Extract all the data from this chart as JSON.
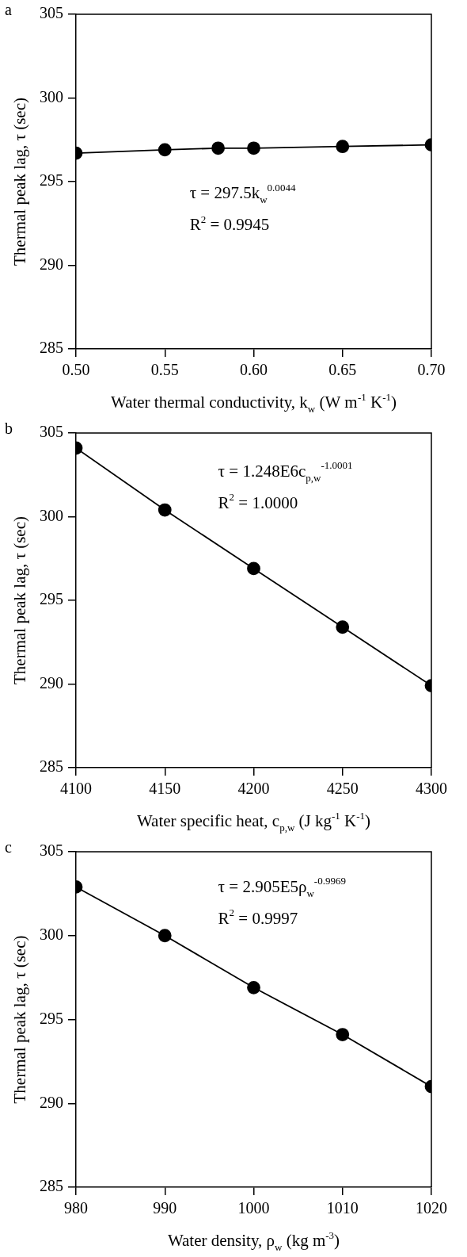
{
  "chart_data": [
    {
      "type": "line",
      "title": "a",
      "xlabel": "Water thermal conductivity, k$_{w}$ (W m$^{-1}$ K$^{-1}$)",
      "ylabel": "Thermal peak lag, τ (sec)",
      "x": [
        0.5,
        0.55,
        0.58,
        0.6,
        0.65,
        0.7
      ],
      "series": [
        {
          "color": "#000000",
          "values": [
            296.7,
            296.9,
            297.0,
            297.0,
            297.1,
            297.2
          ]
        }
      ],
      "xlim": [
        0.5,
        0.7
      ],
      "xticks": [
        {
          "value": 0.5,
          "label": "0.50"
        },
        0.55,
        {
          "value": 0.6,
          "label": "0.60"
        },
        0.65,
        {
          "value": 0.7,
          "label": "0.70"
        }
      ],
      "ylim": [
        285,
        305
      ],
      "yticks": [
        285,
        290,
        295,
        300,
        305
      ],
      "annotations": [
        "τ = 297.5k$_{w}$$^{0.0044}$",
        "R$^{2}$ = 0.9945"
      ],
      "marker": "circle",
      "line_style": "solid",
      "grid": false,
      "legend": false
    },
    {
      "type": "line",
      "title": "b",
      "xlabel": "Water specific heat, c$_{p,w}$ (J kg$^{-1}$ K$^{-1}$)",
      "ylabel": "Thermal peak lag, τ (sec)",
      "x": [
        4100,
        4150,
        4200,
        4250,
        4300
      ],
      "series": [
        {
          "color": "#000000",
          "values": [
            304.1,
            300.4,
            296.9,
            293.4,
            289.9
          ]
        }
      ],
      "xlim": [
        4100,
        4300
      ],
      "xticks": [
        4100,
        4150,
        4200,
        4250,
        4300
      ],
      "ylim": [
        285,
        305
      ],
      "yticks": [
        285,
        290,
        295,
        300,
        305
      ],
      "annotations": [
        "τ = 1.248E6c$_{p,w}$$^{-1.0001}$",
        "R$^{2}$ = 1.0000"
      ],
      "marker": "circle",
      "line_style": "solid",
      "grid": false,
      "legend": false
    },
    {
      "type": "line",
      "title": "c",
      "xlabel": "Water density, ρ$_{w}$ (kg m$^{-3}$)",
      "ylabel": "Thermal peak lag, τ (sec)",
      "x": [
        980,
        990,
        1000,
        1010,
        1020
      ],
      "series": [
        {
          "color": "#000000",
          "values": [
            302.9,
            300.0,
            296.9,
            294.1,
            291.0
          ]
        }
      ],
      "xlim": [
        980,
        1020
      ],
      "xticks": [
        980,
        990,
        1000,
        1010,
        1020
      ],
      "ylim": [
        285,
        305
      ],
      "yticks": [
        285,
        290,
        295,
        300,
        305
      ],
      "annotations": [
        "τ = 2.905E5ρ$_{w}$$^{-0.9969}$",
        "R$^{2}$ = 0.9997"
      ],
      "marker": "circle",
      "line_style": "solid",
      "grid": false,
      "legend": false
    }
  ]
}
